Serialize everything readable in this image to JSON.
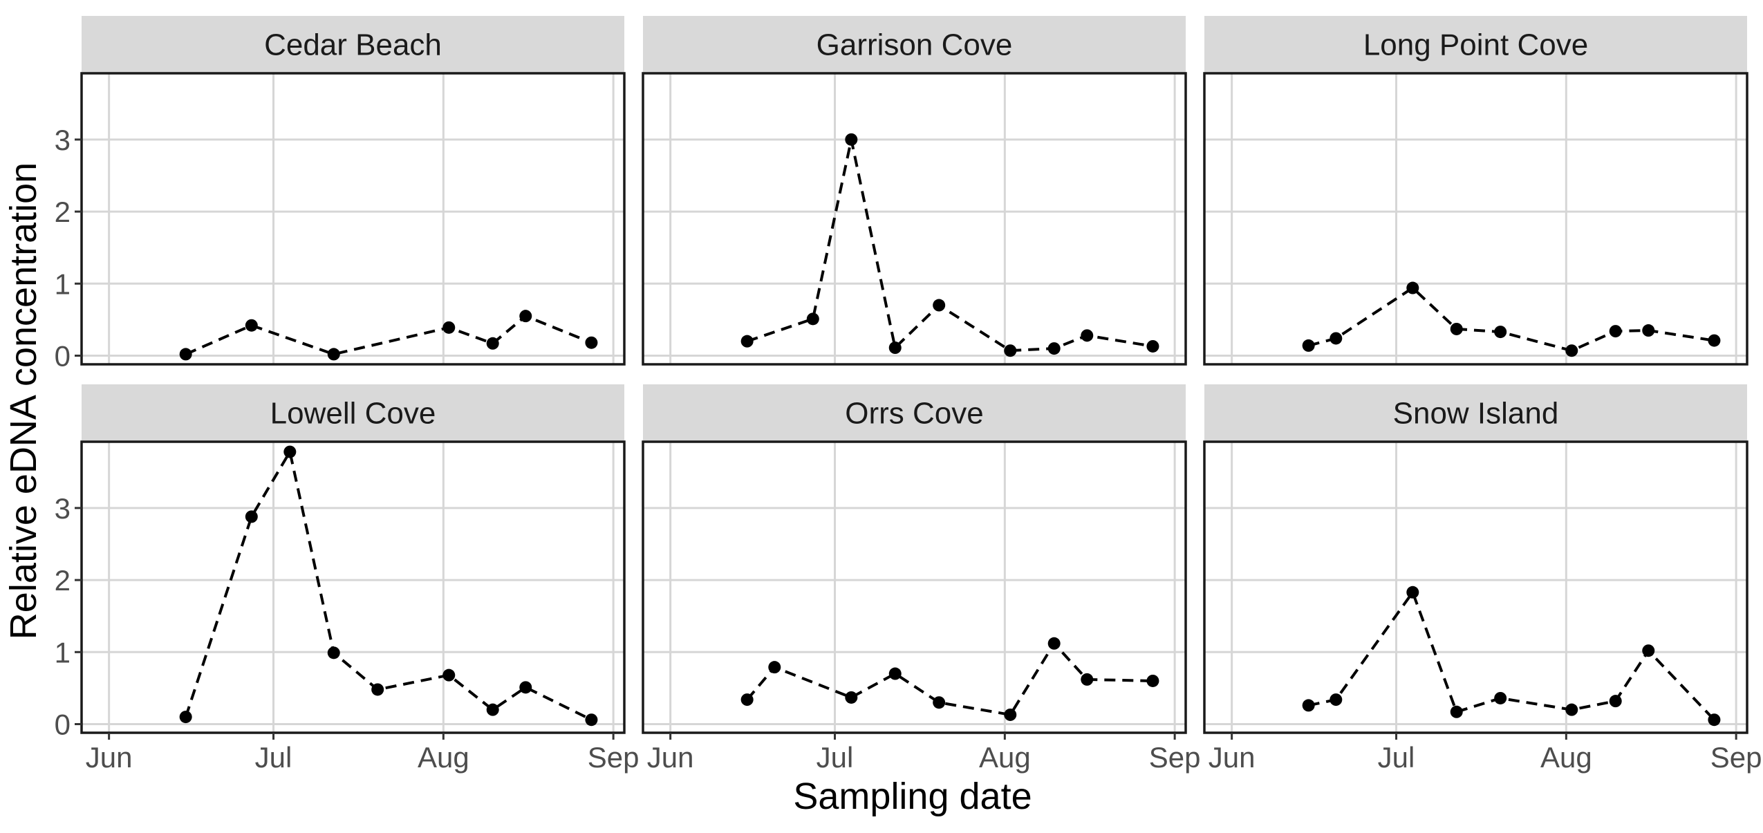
{
  "chart_data": {
    "type": "line",
    "xlabel": "Sampling date",
    "ylabel": "Relative eDNA concentration",
    "x_axis": {
      "type": "date",
      "range": [
        "2020-05-27",
        "2020-09-03"
      ],
      "ticks": [
        {
          "date": "2020-06-01",
          "label": "Jun"
        },
        {
          "date": "2020-07-01",
          "label": "Jul"
        },
        {
          "date": "2020-08-01",
          "label": "Aug"
        },
        {
          "date": "2020-09-01",
          "label": "Sep"
        }
      ]
    },
    "y_axis": {
      "range": [
        -0.12,
        3.92
      ],
      "ticks": [
        0,
        1,
        2,
        3
      ]
    },
    "grid": true,
    "line_style": "dashed",
    "layout": {
      "rows": 2,
      "cols": 3,
      "shared_axes": true
    },
    "panels": [
      {
        "title": "Cedar Beach",
        "points": [
          {
            "x": "2020-06-15",
            "y": 0.02
          },
          {
            "x": "2020-06-27",
            "y": 0.42
          },
          {
            "x": "2020-07-12",
            "y": 0.02
          },
          {
            "x": "2020-08-02",
            "y": 0.39
          },
          {
            "x": "2020-08-10",
            "y": 0.17
          },
          {
            "x": "2020-08-16",
            "y": 0.55
          },
          {
            "x": "2020-08-28",
            "y": 0.18
          }
        ]
      },
      {
        "title": "Garrison Cove",
        "points": [
          {
            "x": "2020-06-15",
            "y": 0.2
          },
          {
            "x": "2020-06-27",
            "y": 0.51
          },
          {
            "x": "2020-07-04",
            "y": 3.0
          },
          {
            "x": "2020-07-12",
            "y": 0.11
          },
          {
            "x": "2020-07-20",
            "y": 0.7
          },
          {
            "x": "2020-08-02",
            "y": 0.07
          },
          {
            "x": "2020-08-10",
            "y": 0.1
          },
          {
            "x": "2020-08-16",
            "y": 0.28
          },
          {
            "x": "2020-08-28",
            "y": 0.13
          }
        ]
      },
      {
        "title": "Long Point Cove",
        "points": [
          {
            "x": "2020-06-15",
            "y": 0.14
          },
          {
            "x": "2020-06-20",
            "y": 0.24
          },
          {
            "x": "2020-07-04",
            "y": 0.94
          },
          {
            "x": "2020-07-12",
            "y": 0.37
          },
          {
            "x": "2020-07-20",
            "y": 0.33
          },
          {
            "x": "2020-08-02",
            "y": 0.07
          },
          {
            "x": "2020-08-10",
            "y": 0.34
          },
          {
            "x": "2020-08-16",
            "y": 0.35
          },
          {
            "x": "2020-08-28",
            "y": 0.21
          }
        ]
      },
      {
        "title": "Lowell Cove",
        "points": [
          {
            "x": "2020-06-15",
            "y": 0.1
          },
          {
            "x": "2020-06-27",
            "y": 2.88
          },
          {
            "x": "2020-07-04",
            "y": 3.78
          },
          {
            "x": "2020-07-12",
            "y": 0.99
          },
          {
            "x": "2020-07-20",
            "y": 0.48
          },
          {
            "x": "2020-08-02",
            "y": 0.68
          },
          {
            "x": "2020-08-10",
            "y": 0.2
          },
          {
            "x": "2020-08-16",
            "y": 0.51
          },
          {
            "x": "2020-08-28",
            "y": 0.06
          }
        ]
      },
      {
        "title": "Orrs Cove",
        "points": [
          {
            "x": "2020-06-15",
            "y": 0.34
          },
          {
            "x": "2020-06-20",
            "y": 0.79
          },
          {
            "x": "2020-07-04",
            "y": 0.37
          },
          {
            "x": "2020-07-12",
            "y": 0.7
          },
          {
            "x": "2020-07-20",
            "y": 0.3
          },
          {
            "x": "2020-08-02",
            "y": 0.13
          },
          {
            "x": "2020-08-10",
            "y": 1.12
          },
          {
            "x": "2020-08-16",
            "y": 0.62
          },
          {
            "x": "2020-08-28",
            "y": 0.6
          }
        ]
      },
      {
        "title": "Snow Island",
        "points": [
          {
            "x": "2020-06-15",
            "y": 0.26
          },
          {
            "x": "2020-06-20",
            "y": 0.34
          },
          {
            "x": "2020-07-04",
            "y": 1.83
          },
          {
            "x": "2020-07-12",
            "y": 0.17
          },
          {
            "x": "2020-07-20",
            "y": 0.36
          },
          {
            "x": "2020-08-02",
            "y": 0.2
          },
          {
            "x": "2020-08-10",
            "y": 0.32
          },
          {
            "x": "2020-08-16",
            "y": 1.02
          },
          {
            "x": "2020-08-28",
            "y": 0.06
          }
        ]
      }
    ]
  }
}
